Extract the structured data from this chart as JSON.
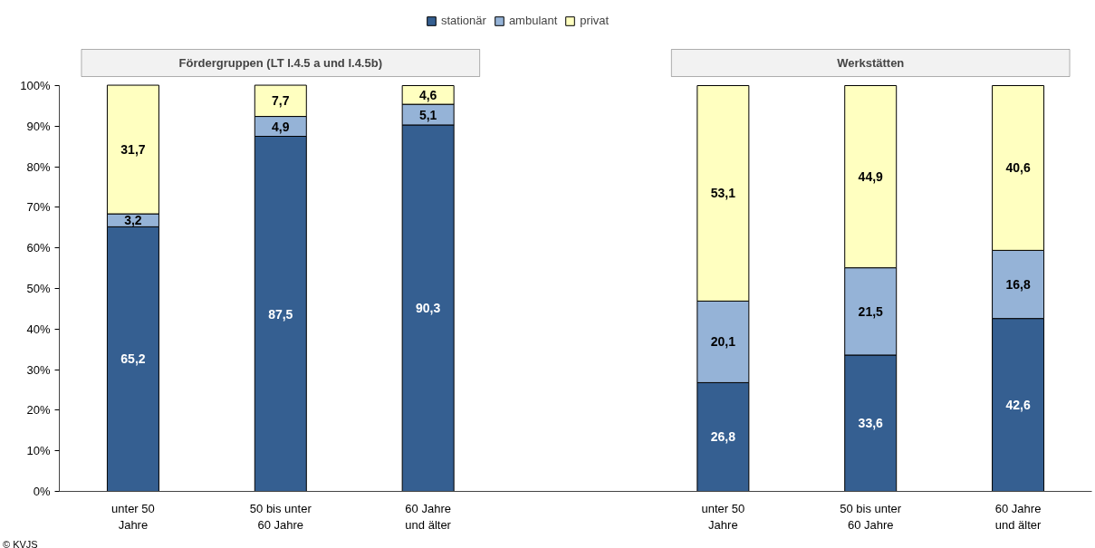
{
  "chart_data": {
    "type": "bar",
    "stacked": true,
    "categories": [
      "unter 50\nJahre",
      "50 bis unter\n60 Jahre",
      "60 Jahre\nund älter",
      null,
      "unter 50\nJahre",
      "50 bis unter\n60 Jahre",
      "60 Jahre\nund älter"
    ],
    "series": [
      {
        "name": "stationär",
        "color": "#355f91",
        "values": [
          65.2,
          87.5,
          90.3,
          null,
          26.8,
          33.6,
          42.6
        ],
        "value_labels": [
          "65,2",
          "87,5",
          "90,3",
          null,
          "26,8",
          "33,6",
          "42,6"
        ]
      },
      {
        "name": "ambulant",
        "color": "#95b3d7",
        "values": [
          3.2,
          4.9,
          5.1,
          null,
          20.1,
          21.5,
          16.8
        ],
        "value_labels": [
          "3,2",
          "4,9",
          "5,1",
          null,
          "20,1",
          "21,5",
          "16,8"
        ]
      },
      {
        "name": "privat",
        "color": "#ffffc0",
        "values": [
          31.7,
          7.7,
          4.6,
          null,
          53.1,
          44.9,
          40.6
        ],
        "value_labels": [
          "31,7",
          "7,7",
          "4,6",
          null,
          "53,1",
          "44,9",
          "40,6"
        ]
      }
    ],
    "ylim": [
      0,
      100
    ],
    "yticks": [
      {
        "value": 0,
        "label": "0%"
      },
      {
        "value": 10,
        "label": "10%"
      },
      {
        "value": 20,
        "label": "20%"
      },
      {
        "value": 30,
        "label": "30%"
      },
      {
        "value": 40,
        "label": "40%"
      },
      {
        "value": 50,
        "label": "50%"
      },
      {
        "value": 60,
        "label": "60%"
      },
      {
        "value": 70,
        "label": "70%"
      },
      {
        "value": 80,
        "label": "80%"
      },
      {
        "value": 90,
        "label": "90%"
      },
      {
        "value": 100,
        "label": "100%"
      }
    ],
    "annotations": [
      "Fördergruppen (LT I.4.5 a und I.4.5b)",
      "Werkstätten",
      "© KVJS"
    ],
    "grid": false,
    "legend": "top"
  }
}
